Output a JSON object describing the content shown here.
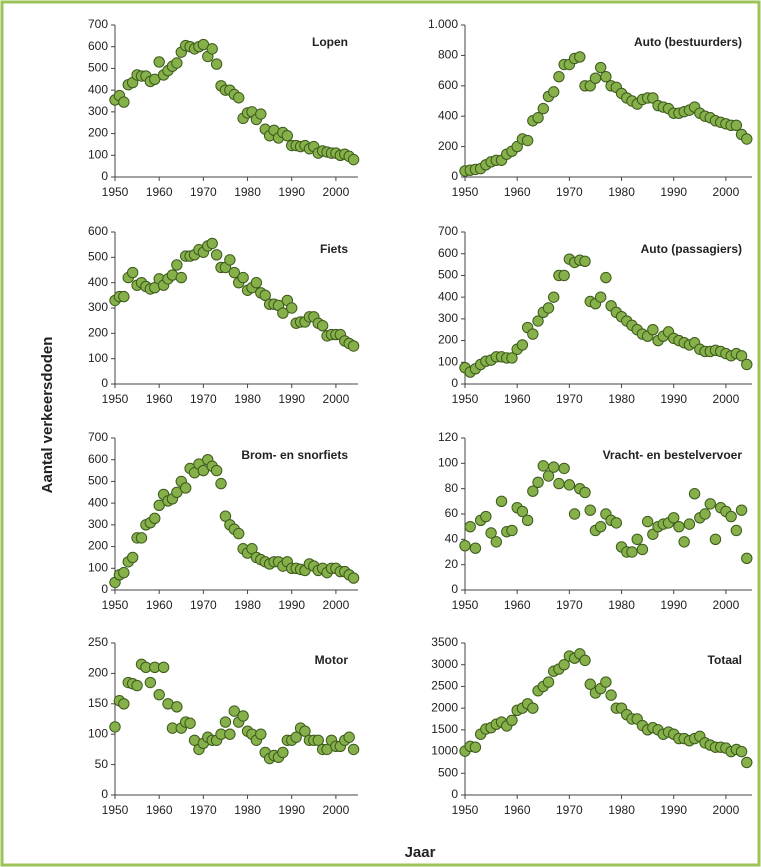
{
  "ylabel": "Aantal verkeersdoden",
  "xlabel": "Jaar",
  "chart_data": [
    {
      "type": "scatter",
      "title": "Lopen",
      "color": "#86b04a",
      "grid": false,
      "x": [
        1950,
        1951,
        1952,
        1953,
        1954,
        1955,
        1956,
        1957,
        1958,
        1959,
        1960,
        1961,
        1962,
        1963,
        1964,
        1965,
        1966,
        1967,
        1968,
        1969,
        1970,
        1971,
        1972,
        1973,
        1974,
        1975,
        1976,
        1977,
        1978,
        1979,
        1980,
        1981,
        1982,
        1983,
        1984,
        1985,
        1986,
        1987,
        1988,
        1989,
        1990,
        1991,
        1992,
        1993,
        1994,
        1995,
        1996,
        1997,
        1998,
        1999,
        2000,
        2001,
        2002,
        2003,
        2004
      ],
      "values": [
        355,
        375,
        345,
        425,
        435,
        470,
        465,
        465,
        440,
        450,
        530,
        470,
        490,
        510,
        525,
        575,
        605,
        600,
        590,
        600,
        610,
        555,
        590,
        520,
        420,
        400,
        400,
        380,
        365,
        270,
        295,
        300,
        265,
        290,
        220,
        190,
        215,
        180,
        205,
        190,
        145,
        145,
        140,
        145,
        130,
        140,
        110,
        120,
        115,
        110,
        110,
        100,
        105,
        95,
        80
      ],
      "xlim": [
        1950,
        2005
      ],
      "xticks": [
        1950,
        1960,
        1970,
        1980,
        1990,
        2000
      ],
      "ylim": [
        0,
        700
      ],
      "yticks": [
        0,
        100,
        200,
        300,
        400,
        500,
        600,
        700
      ]
    },
    {
      "type": "scatter",
      "title": "Auto (bestuurders)",
      "color": "#86b04a",
      "grid": false,
      "x": [
        1950,
        1951,
        1952,
        1953,
        1954,
        1955,
        1956,
        1957,
        1958,
        1959,
        1960,
        1961,
        1962,
        1963,
        1964,
        1965,
        1966,
        1967,
        1968,
        1969,
        1970,
        1971,
        1972,
        1973,
        1974,
        1975,
        1976,
        1977,
        1978,
        1979,
        1980,
        1981,
        1982,
        1983,
        1984,
        1985,
        1986,
        1987,
        1988,
        1989,
        1990,
        1991,
        1992,
        1993,
        1994,
        1995,
        1996,
        1997,
        1998,
        1999,
        2000,
        2001,
        2002,
        2003,
        2004
      ],
      "values": [
        40,
        45,
        50,
        55,
        80,
        100,
        110,
        110,
        150,
        170,
        200,
        250,
        240,
        370,
        390,
        450,
        530,
        560,
        660,
        740,
        740,
        780,
        790,
        600,
        600,
        650,
        720,
        660,
        600,
        590,
        550,
        520,
        500,
        480,
        510,
        520,
        520,
        470,
        460,
        450,
        420,
        420,
        430,
        440,
        460,
        420,
        400,
        390,
        370,
        360,
        350,
        340,
        340,
        280,
        250
      ],
      "xlim": [
        1950,
        2005
      ],
      "xticks": [
        1950,
        1960,
        1970,
        1980,
        1990,
        2000
      ],
      "ylim": [
        0,
        1000
      ],
      "yticks": [
        0,
        200,
        400,
        600,
        800,
        {
          "value": 1000,
          "label": "1.000"
        }
      ]
    },
    {
      "type": "scatter",
      "title": "Fiets",
      "color": "#86b04a",
      "grid": false,
      "x": [
        1950,
        1951,
        1952,
        1953,
        1954,
        1955,
        1956,
        1957,
        1958,
        1959,
        1960,
        1961,
        1962,
        1963,
        1964,
        1965,
        1966,
        1967,
        1968,
        1969,
        1970,
        1971,
        1972,
        1973,
        1974,
        1975,
        1976,
        1977,
        1978,
        1979,
        1980,
        1981,
        1982,
        1983,
        1984,
        1985,
        1986,
        1987,
        1988,
        1989,
        1990,
        1991,
        1992,
        1993,
        1994,
        1995,
        1996,
        1997,
        1998,
        1999,
        2000,
        2001,
        2002,
        2003,
        2004
      ],
      "values": [
        330,
        345,
        345,
        420,
        440,
        390,
        400,
        385,
        375,
        380,
        415,
        390,
        415,
        430,
        470,
        420,
        505,
        505,
        510,
        530,
        520,
        545,
        555,
        510,
        460,
        460,
        490,
        440,
        400,
        420,
        370,
        380,
        400,
        360,
        350,
        315,
        315,
        310,
        280,
        330,
        300,
        240,
        245,
        245,
        265,
        265,
        240,
        230,
        190,
        195,
        195,
        195,
        170,
        160,
        150
      ],
      "xlim": [
        1950,
        2005
      ],
      "xticks": [
        1950,
        1960,
        1970,
        1980,
        1990,
        2000
      ],
      "ylim": [
        0,
        600
      ],
      "yticks": [
        0,
        100,
        200,
        300,
        400,
        500,
        600
      ]
    },
    {
      "type": "scatter",
      "title": "Auto (passagiers)",
      "color": "#86b04a",
      "grid": false,
      "x": [
        1950,
        1951,
        1952,
        1953,
        1954,
        1955,
        1956,
        1957,
        1958,
        1959,
        1960,
        1961,
        1962,
        1963,
        1964,
        1965,
        1966,
        1967,
        1968,
        1969,
        1970,
        1971,
        1972,
        1973,
        1974,
        1975,
        1976,
        1977,
        1978,
        1979,
        1980,
        1981,
        1982,
        1983,
        1984,
        1985,
        1986,
        1987,
        1988,
        1989,
        1990,
        1991,
        1992,
        1993,
        1994,
        1995,
        1996,
        1997,
        1998,
        1999,
        2000,
        2001,
        2002,
        2003,
        2004
      ],
      "values": [
        75,
        55,
        70,
        90,
        105,
        110,
        125,
        125,
        120,
        120,
        160,
        180,
        260,
        230,
        290,
        330,
        350,
        400,
        500,
        500,
        575,
        560,
        570,
        565,
        380,
        370,
        400,
        490,
        360,
        330,
        310,
        290,
        270,
        250,
        230,
        220,
        250,
        200,
        220,
        240,
        210,
        200,
        190,
        180,
        190,
        160,
        150,
        150,
        155,
        150,
        140,
        130,
        140,
        130,
        90
      ],
      "xlim": [
        1950,
        2005
      ],
      "xticks": [
        1950,
        1960,
        1970,
        1980,
        1990,
        2000
      ],
      "ylim": [
        0,
        700
      ],
      "yticks": [
        0,
        100,
        200,
        300,
        400,
        500,
        600,
        700
      ]
    },
    {
      "type": "scatter",
      "title": "Brom- en snorfiets",
      "color": "#86b04a",
      "grid": false,
      "x": [
        1950,
        1951,
        1952,
        1953,
        1954,
        1955,
        1956,
        1957,
        1958,
        1959,
        1960,
        1961,
        1962,
        1963,
        1964,
        1965,
        1966,
        1967,
        1968,
        1969,
        1970,
        1971,
        1972,
        1973,
        1974,
        1975,
        1976,
        1977,
        1978,
        1979,
        1980,
        1981,
        1982,
        1983,
        1984,
        1985,
        1986,
        1987,
        1988,
        1989,
        1990,
        1991,
        1992,
        1993,
        1994,
        1995,
        1996,
        1997,
        1998,
        1999,
        2000,
        2001,
        2002,
        2003,
        2004
      ],
      "values": [
        35,
        70,
        80,
        130,
        150,
        240,
        240,
        300,
        310,
        330,
        390,
        440,
        410,
        420,
        450,
        500,
        470,
        560,
        540,
        580,
        550,
        600,
        570,
        550,
        490,
        340,
        300,
        280,
        260,
        190,
        170,
        190,
        150,
        140,
        130,
        120,
        130,
        130,
        110,
        130,
        100,
        100,
        95,
        90,
        120,
        110,
        90,
        100,
        80,
        100,
        100,
        85,
        85,
        70,
        55
      ],
      "xlim": [
        1950,
        2005
      ],
      "xticks": [
        1950,
        1960,
        1970,
        1980,
        1990,
        2000
      ],
      "ylim": [
        0,
        700
      ],
      "yticks": [
        0,
        100,
        200,
        300,
        400,
        500,
        600,
        700
      ]
    },
    {
      "type": "scatter",
      "title": "Vracht- en bestelvervoer",
      "color": "#86b04a",
      "grid": false,
      "x": [
        1950,
        1951,
        1952,
        1953,
        1954,
        1955,
        1956,
        1957,
        1958,
        1959,
        1960,
        1961,
        1962,
        1963,
        1964,
        1965,
        1966,
        1967,
        1968,
        1969,
        1970,
        1971,
        1972,
        1973,
        1974,
        1975,
        1976,
        1977,
        1978,
        1979,
        1980,
        1981,
        1982,
        1983,
        1984,
        1985,
        1986,
        1987,
        1988,
        1989,
        1990,
        1991,
        1992,
        1993,
        1994,
        1995,
        1996,
        1997,
        1998,
        1999,
        2000,
        2001,
        2002,
        2003,
        2004
      ],
      "values": [
        35,
        50,
        33,
        55,
        58,
        45,
        38,
        70,
        46,
        47,
        65,
        62,
        55,
        78,
        85,
        98,
        90,
        97,
        84,
        96,
        83,
        60,
        80,
        77,
        63,
        47,
        50,
        60,
        55,
        53,
        34,
        30,
        30,
        40,
        32,
        54,
        44,
        50,
        52,
        53,
        57,
        50,
        38,
        52,
        76,
        57,
        60,
        68,
        40,
        65,
        62,
        58,
        47,
        63,
        25
      ],
      "xlim": [
        1950,
        2005
      ],
      "xticks": [
        1950,
        1960,
        1970,
        1980,
        1990,
        2000
      ],
      "ylim": [
        0,
        120
      ],
      "yticks": [
        0,
        20,
        40,
        60,
        80,
        100,
        120
      ]
    },
    {
      "type": "scatter",
      "title": "Motor",
      "color": "#86b04a",
      "grid": false,
      "x": [
        1950,
        1951,
        1952,
        1953,
        1954,
        1955,
        1956,
        1957,
        1958,
        1959,
        1960,
        1961,
        1962,
        1963,
        1964,
        1965,
        1966,
        1967,
        1968,
        1969,
        1970,
        1971,
        1972,
        1973,
        1974,
        1975,
        1976,
        1977,
        1978,
        1979,
        1980,
        1981,
        1982,
        1983,
        1984,
        1985,
        1986,
        1987,
        1988,
        1989,
        1990,
        1991,
        1992,
        1993,
        1994,
        1995,
        1996,
        1997,
        1998,
        1999,
        2000,
        2001,
        2002,
        2003,
        2004
      ],
      "values": [
        112,
        155,
        150,
        185,
        183,
        180,
        215,
        210,
        185,
        210,
        165,
        210,
        150,
        110,
        145,
        110,
        120,
        118,
        90,
        75,
        85,
        95,
        90,
        90,
        100,
        120,
        100,
        138,
        120,
        130,
        105,
        100,
        90,
        100,
        70,
        60,
        65,
        62,
        70,
        90,
        90,
        95,
        110,
        105,
        90,
        90,
        90,
        75,
        75,
        90,
        80,
        80,
        90,
        95,
        75
      ],
      "xlim": [
        1950,
        2005
      ],
      "xticks": [
        1950,
        1960,
        1970,
        1980,
        1990,
        2000
      ],
      "ylim": [
        0,
        250
      ],
      "yticks": [
        0,
        50,
        100,
        150,
        200,
        250
      ]
    },
    {
      "type": "scatter",
      "title": "Totaal",
      "color": "#86b04a",
      "grid": false,
      "x": [
        1950,
        1951,
        1952,
        1953,
        1954,
        1955,
        1956,
        1957,
        1958,
        1959,
        1960,
        1961,
        1962,
        1963,
        1964,
        1965,
        1966,
        1967,
        1968,
        1969,
        1970,
        1971,
        1972,
        1973,
        1974,
        1975,
        1976,
        1977,
        1978,
        1979,
        1980,
        1981,
        1982,
        1983,
        1984,
        1985,
        1986,
        1987,
        1988,
        1989,
        1990,
        1991,
        1992,
        1993,
        1994,
        1995,
        1996,
        1997,
        1998,
        1999,
        2000,
        2001,
        2002,
        2003,
        2004
      ],
      "values": [
        1010,
        1120,
        1100,
        1400,
        1520,
        1550,
        1630,
        1680,
        1590,
        1720,
        1950,
        2000,
        2100,
        2000,
        2400,
        2500,
        2600,
        2850,
        2900,
        3000,
        3200,
        3150,
        3250,
        3100,
        2550,
        2350,
        2450,
        2600,
        2300,
        2000,
        2000,
        1850,
        1750,
        1750,
        1600,
        1500,
        1550,
        1500,
        1400,
        1450,
        1400,
        1300,
        1300,
        1250,
        1300,
        1350,
        1200,
        1150,
        1100,
        1100,
        1080,
        1000,
        1050,
        1000,
        750
      ],
      "xlim": [
        1950,
        2005
      ],
      "xticks": [
        1950,
        1960,
        1970,
        1980,
        1990,
        2000
      ],
      "ylim": [
        0,
        3500
      ],
      "yticks": [
        0,
        500,
        1000,
        1500,
        2000,
        2500,
        3000,
        3500
      ]
    }
  ]
}
